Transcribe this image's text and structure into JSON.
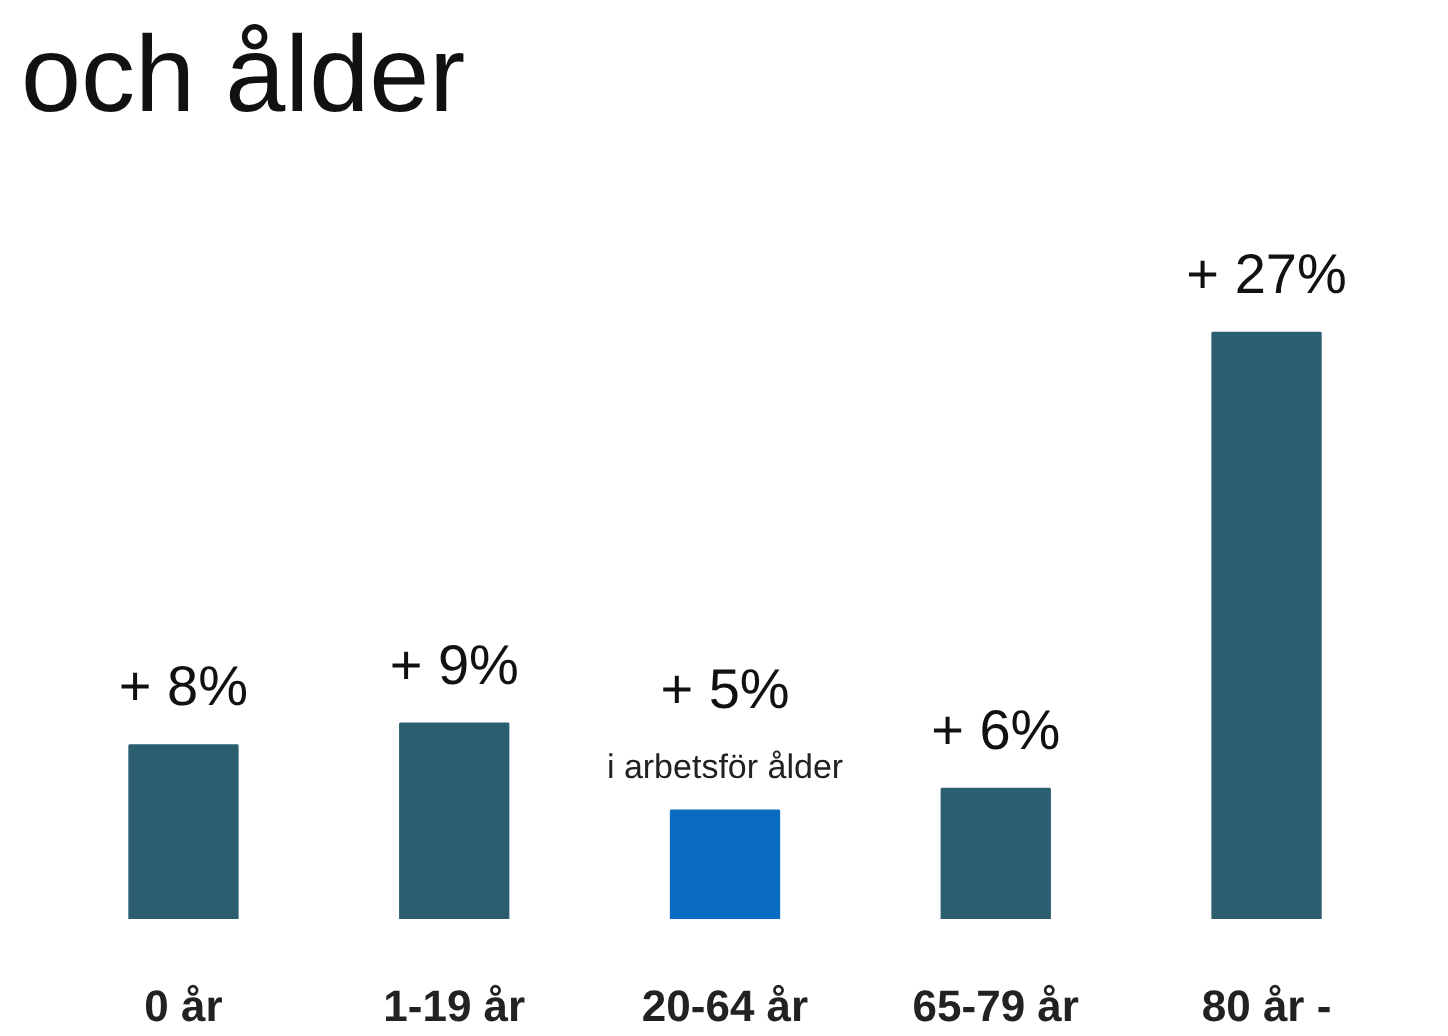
{
  "chart_data": {
    "type": "bar",
    "title": "och ålder",
    "categories": [
      "0 år",
      "1-19 år",
      "20-64 år",
      "65-79 år",
      "80 år -"
    ],
    "values": [
      8,
      9,
      5,
      6,
      27
    ],
    "colors": [
      "#2b5f70",
      "#2b5f70",
      "#0a6cc0",
      "#2b5f70",
      "#2b5f70"
    ],
    "value_labels": [
      "+ 8%",
      "+ 9%",
      "+ 5%",
      "+ 6%",
      "+ 27%"
    ],
    "annotations": [
      {
        "text": "i arbetsför ålder",
        "x": "20-64 år",
        "y": 5
      }
    ],
    "grid": false
  }
}
